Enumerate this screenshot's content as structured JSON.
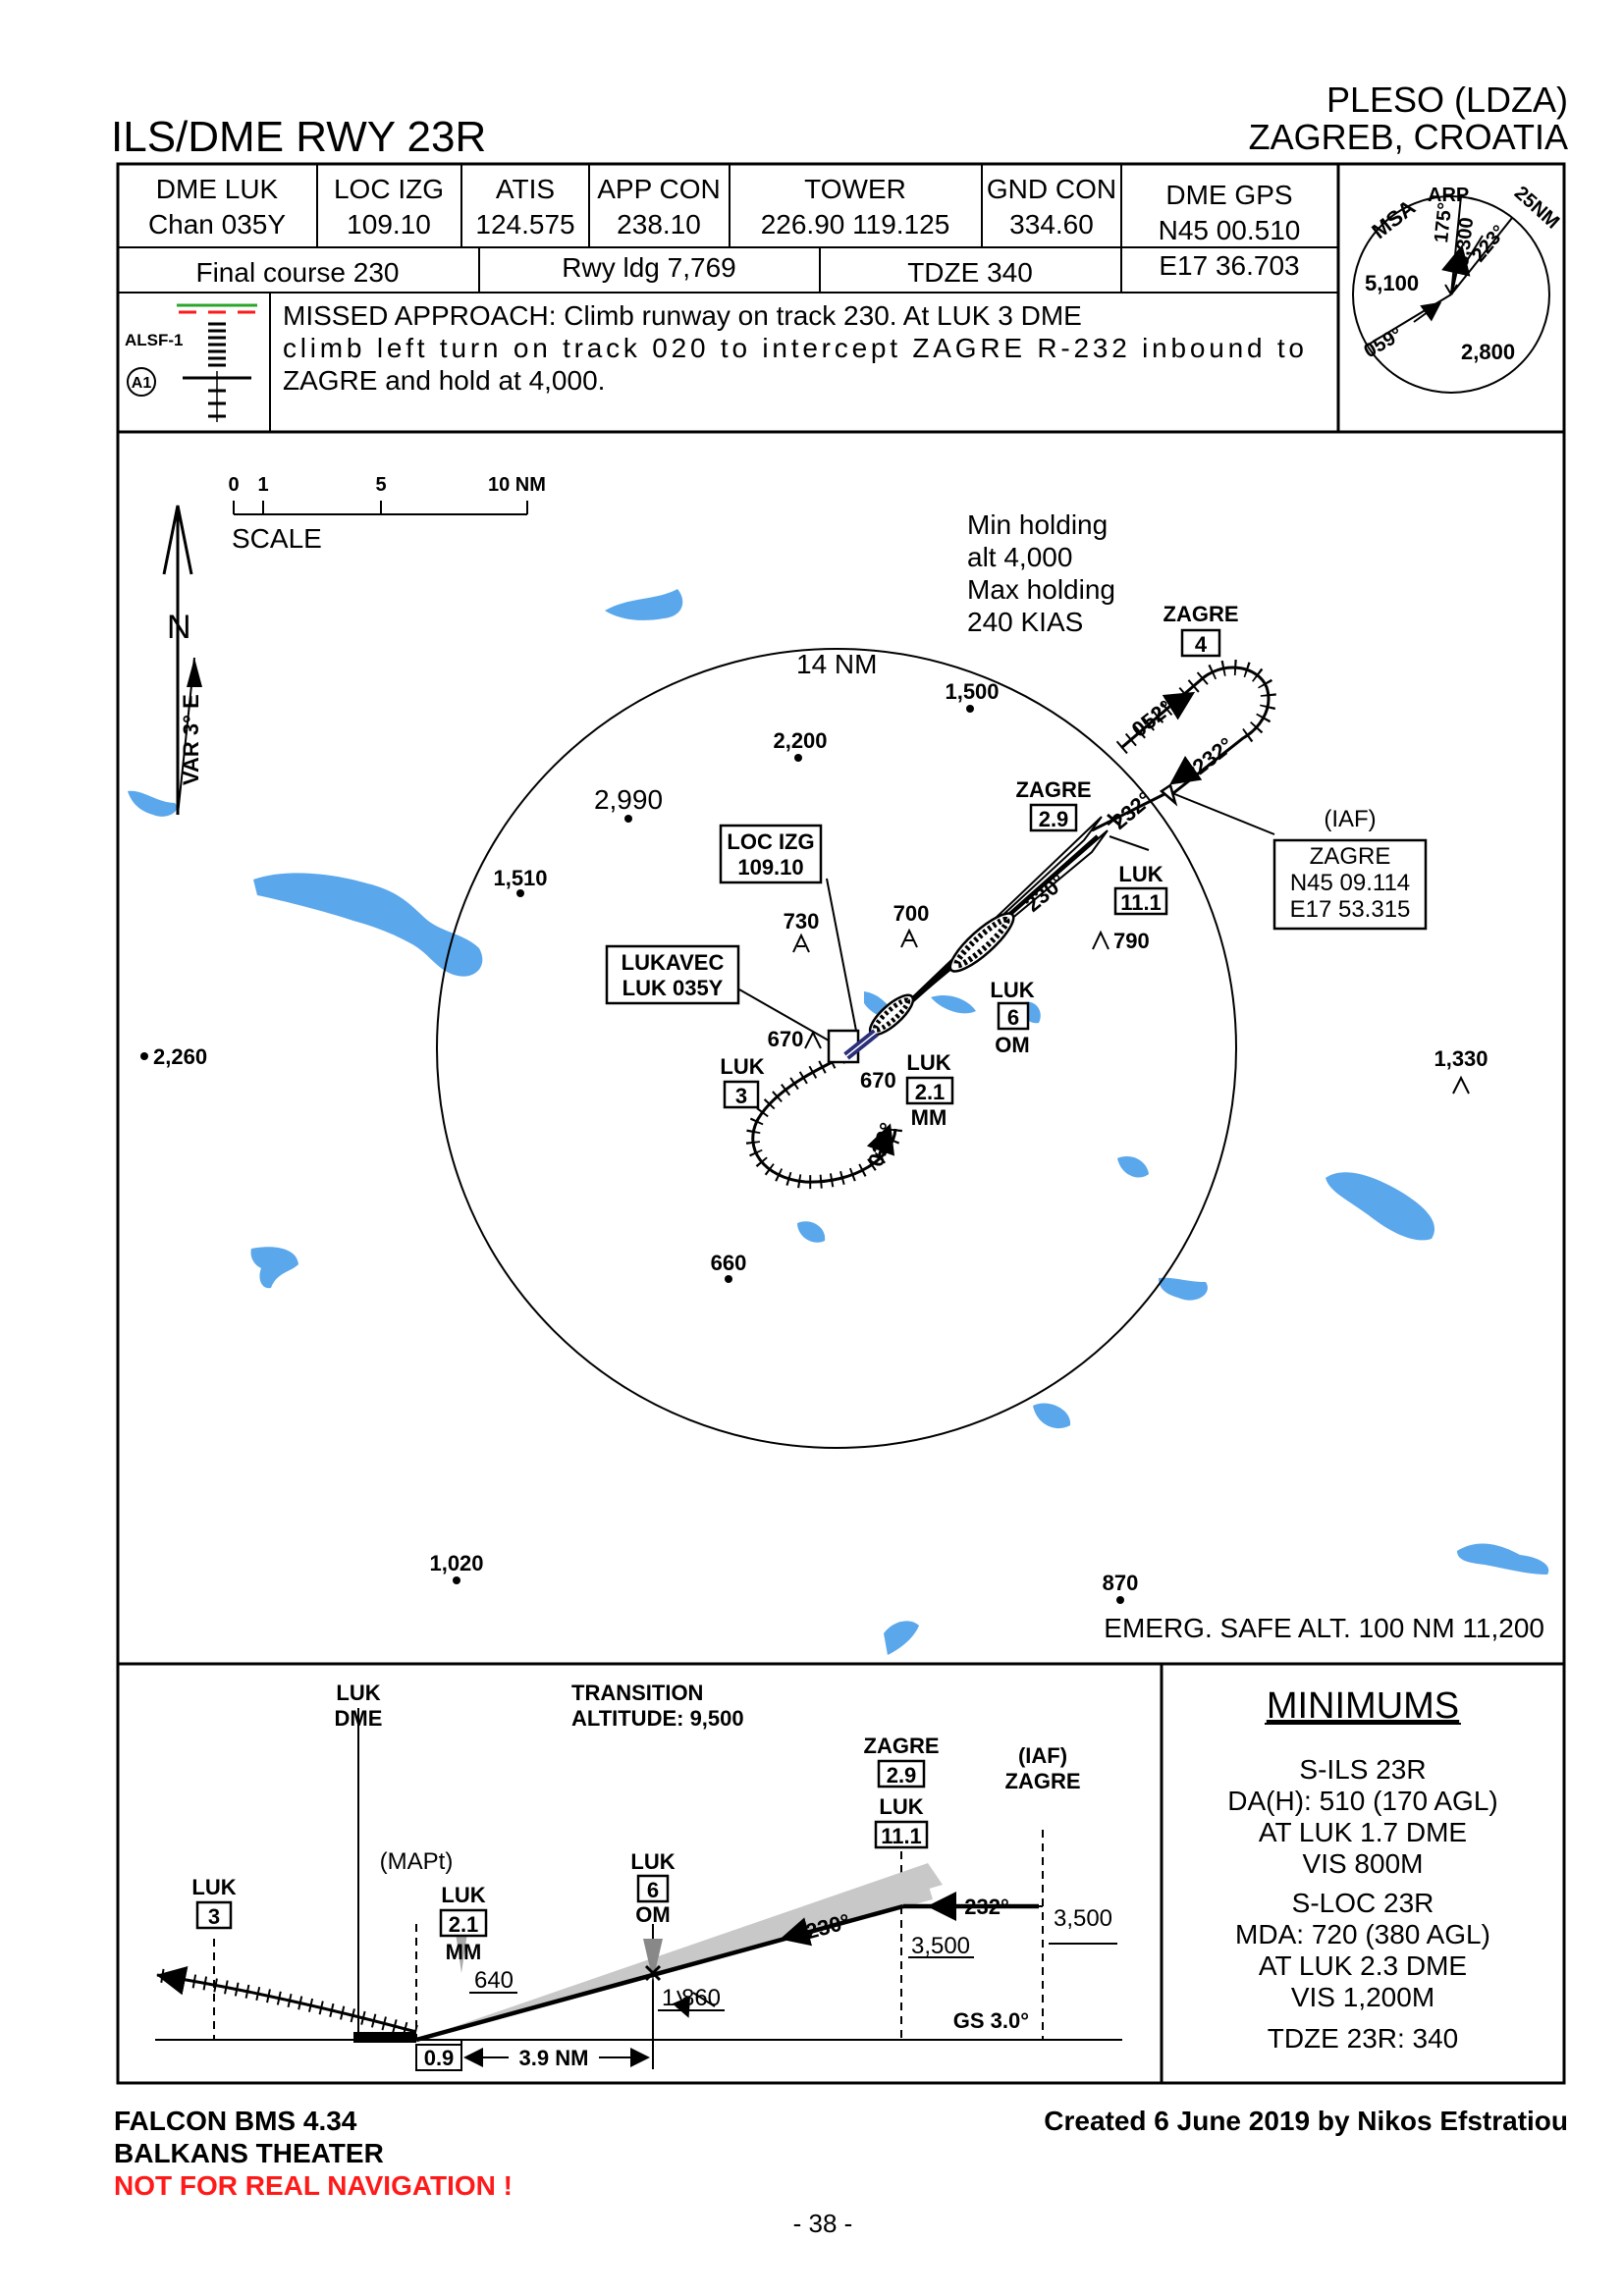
{
  "header": {
    "procedure_title": "ILS/DME RWY 23R",
    "airport_name": "PLESO (LDZA)",
    "airport_location": "ZAGREB, CROATIA"
  },
  "frequencies": {
    "dme": {
      "label": "DME LUK",
      "value": "Chan 035Y"
    },
    "loc": {
      "label": "LOC IZG",
      "value": "109.10"
    },
    "atis": {
      "label": "ATIS",
      "value": "124.575"
    },
    "app_con": {
      "label": "APP CON",
      "value": "238.10"
    },
    "tower": {
      "label": "TOWER",
      "value": "226.90 119.125"
    },
    "gnd_con": {
      "label": "GND CON",
      "value": "334.60"
    },
    "dme_gps": {
      "label": "DME GPS",
      "lat": "N45 00.510",
      "lon": "E17 36.703"
    }
  },
  "briefing": {
    "final_course": "Final course 230",
    "rwy_ldg": "Rwy ldg 7,769",
    "tdze": "TDZE 340"
  },
  "approach_lighting": {
    "label": "ALSF-1",
    "code": "A1"
  },
  "missed_approach": {
    "line1": "MISSED APPROACH: Climb runway on track 230. At LUK 3 DME",
    "line2": "climb left turn on track 020 to intercept ZAGRE R-232 inbound to",
    "line3": "ZAGRE and hold at 4,000."
  },
  "msa": {
    "msa_label": "MSA",
    "arp_label": "ARP",
    "radius_label": "25NM",
    "bearing_175": "175°",
    "bearing_223": "223°",
    "bearing_059": "059°",
    "alt_3300": "3,300",
    "alt_5100": "5,100",
    "alt_2800": "2,800"
  },
  "plan_view": {
    "scale": {
      "tick_0": "0",
      "tick_1": "1",
      "tick_5": "5",
      "tick_10": "10 NM",
      "label": "SCALE"
    },
    "north_label": "N",
    "variation": "VAR 3° E",
    "range_ring": "14 NM",
    "holding_note": [
      "Min holding",
      "alt 4,000",
      "Max holding",
      "240 KIAS"
    ],
    "zagre_hold": {
      "name": "ZAGRE",
      "dme": "4"
    },
    "course_052": "052°",
    "course_232_hold": "232°",
    "course_232_app": "232°",
    "course_230": "230°",
    "course_020": "020°",
    "zagre_29": {
      "name": "ZAGRE",
      "dme": "2.9"
    },
    "iaf": {
      "tag": "(IAF)",
      "name": "ZAGRE",
      "lat": "N45 09.114",
      "lon": "E17 53.315"
    },
    "luk_111": {
      "name": "LUK",
      "dme": "11.1"
    },
    "loc_box": {
      "line1": "LOC IZG",
      "line2": "109.10"
    },
    "lukavec_box": {
      "line1": "LUKAVEC",
      "line2": "LUK 035Y"
    },
    "luk_6": {
      "name": "LUK",
      "dme": "6",
      "marker": "OM"
    },
    "luk_3": {
      "name": "LUK",
      "dme": "3"
    },
    "luk_21": {
      "name": "LUK",
      "dme": "2.1",
      "marker": "MM"
    },
    "elevations": {
      "e1500": "1,500",
      "e2200": "2,200",
      "e2990": "2,990",
      "e1510": "1,510",
      "e730": "730",
      "e700": "700",
      "e790": "790",
      "e670a": "670",
      "e670b": "670",
      "e2260": "2,260",
      "e1330": "1,330",
      "e660": "660",
      "e1020": "1,020",
      "e870": "870"
    },
    "emerg_safe_alt": "EMERG. SAFE ALT. 100 NM 11,200"
  },
  "profile_view": {
    "luk_dme": [
      "LUK",
      "DME"
    ],
    "transition": [
      "TRANSITION",
      "ALTITUDE: 9,500"
    ],
    "mapt": "(MAPt)",
    "luk_3": {
      "name": "LUK",
      "dme": "3"
    },
    "luk_21": {
      "name": "LUK",
      "dme": "2.1",
      "marker": "MM"
    },
    "alt_640": "640",
    "luk_6": {
      "name": "LUK",
      "dme": "6",
      "marker": "OM"
    },
    "alt_1860": "1,860",
    "zagre": {
      "name": "ZAGRE",
      "dme": "2.9"
    },
    "luk_111": {
      "name": "LUK",
      "dme": "11.1"
    },
    "iaf": {
      "tag": "(IAF)",
      "name": "ZAGRE"
    },
    "course_232": "232°",
    "course_230": "230°",
    "alt_3500a": "3,500",
    "alt_3500b": "3,500",
    "gs": "GS 3.0°",
    "dist_09": "0.9",
    "dist_39": "3.9 NM"
  },
  "minimums": {
    "title": "MINIMUMS",
    "ils_title": "S-ILS 23R",
    "ils_da": "DA(H):  510 (170 AGL)",
    "ils_at": "AT LUK 1.7 DME",
    "ils_vis": "VIS 800M",
    "loc_title": "S-LOC 23R",
    "loc_mda": "MDA:  720 (380 AGL)",
    "loc_at": "AT LUK 2.3 DME",
    "loc_vis": "VIS 1,200M",
    "tdze": "TDZE 23R:  340"
  },
  "footer": {
    "sim": "FALCON BMS 4.34",
    "theater": "BALKANS THEATER",
    "warning": "NOT FOR REAL NAVIGATION !",
    "credit": "Created 6 June 2019 by Nikos Efstratiou",
    "page_number": "- 38 -"
  },
  "colors": {
    "water": "#5aa7ec",
    "warning_red": "#ff1a1a",
    "runway_navy": "#2b2f78",
    "cone_grey": "#c8c8c8"
  }
}
